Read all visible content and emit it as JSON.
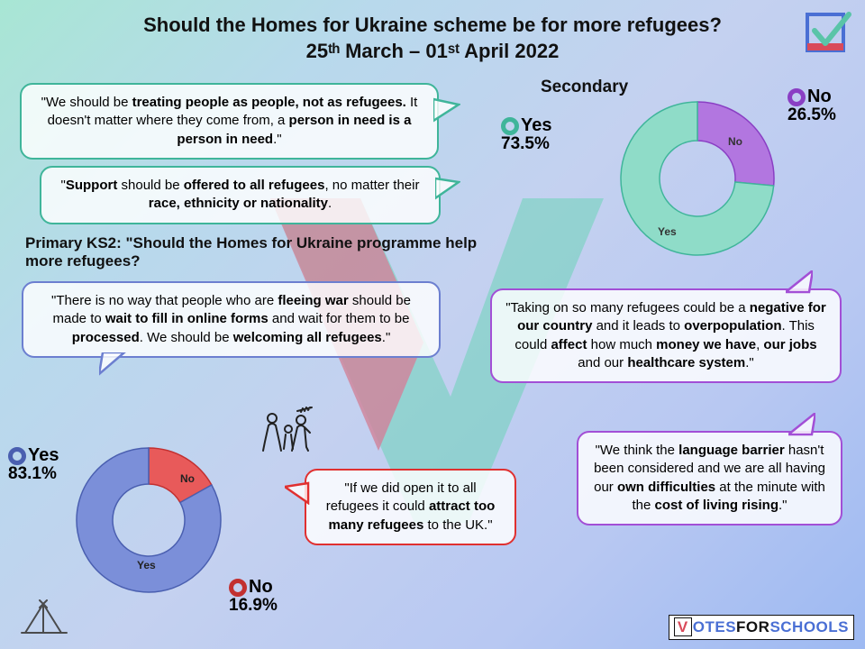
{
  "title_line1": "Should the Homes for Ukraine scheme be for more refugees?",
  "title_line2": "25ᵗʰ March – 01ˢᵗ April 2022",
  "secondary_heading": "Secondary",
  "ks2_heading": "Primary KS2: \"Should the Homes for Ukraine programme help more refugees?",
  "donut_secondary": {
    "type": "donut",
    "yes_pct": 73.5,
    "no_pct": 26.5,
    "yes_color": "#8fdcc8",
    "no_color": "#b276e0",
    "yes_border": "#3fb59a",
    "no_border": "#8a3fc4",
    "inner_radius": 42,
    "outer_radius": 85,
    "label_yes": "Yes",
    "label_no": "No",
    "legend_yes_label": "Yes",
    "legend_yes_pct": "73.5%",
    "legend_no_label": "No",
    "legend_no_pct": "26.5%"
  },
  "donut_primary": {
    "type": "donut",
    "yes_pct": 83.1,
    "no_pct": 16.9,
    "yes_color": "#7b8fd9",
    "no_color": "#e85a5a",
    "yes_border": "#4a5fb0",
    "no_border": "#c23030",
    "inner_radius": 40,
    "outer_radius": 80,
    "label_yes": "Yes",
    "label_no": "No",
    "legend_yes_label": "Yes",
    "legend_yes_pct": "83.1%",
    "legend_no_label": "No",
    "legend_no_pct": "16.9%"
  },
  "bubbles": {
    "b1": {
      "border": "#3fb59a",
      "text_pre": "\"We should be ",
      "bold1": "treating people as people, not as refugees.",
      "mid": " It doesn't matter where they come from, a ",
      "bold2": "person in need is a person in need",
      "post": ".\""
    },
    "b2": {
      "border": "#3fb59a",
      "pre": "\"",
      "bold1": "Support",
      "mid1": " should be ",
      "bold2": "offered to all refugees",
      "mid2": ", no matter their ",
      "bold3": "race, ethnicity or nationality",
      "post": "."
    },
    "b3": {
      "border": "#6c7fd0",
      "pre": "\"There is no way that people who are ",
      "bold1": "fleeing war",
      "mid1": " should be made to ",
      "bold2": "wait to fill in online forms",
      "mid2": " and wait for them to be ",
      "bold3": "processed",
      "mid3": ". We should be ",
      "bold4": "welcoming all refugees",
      "post": ".\""
    },
    "b4": {
      "border": "#a24fd6",
      "pre": "\"Taking on so many refugees could be a ",
      "bold1": "negative for our country",
      "mid1": " and it leads to ",
      "bold2": "overpopulation",
      "mid2": ". This could ",
      "bold3": "affect",
      "mid3": " how much ",
      "bold4": "money we have",
      "mid4": ", ",
      "bold5": "our jobs",
      "mid5": " and our ",
      "bold6": "healthcare system",
      "post": ".\""
    },
    "b5": {
      "border": "#e03030",
      "pre": "\"If we did open it to all refugees it could ",
      "bold1": "attract too many refugees",
      "post": " to the UK.\""
    },
    "b6": {
      "border": "#a24fd6",
      "pre": "\"We think the ",
      "bold1": "language barrier",
      "mid1": " hasn't been considered and we are all having our ",
      "bold2": "own difficulties",
      "mid2": " at the minute with the ",
      "bold3": "cost of living rising",
      "post": ".\""
    }
  },
  "footer": {
    "v": "V",
    "otes": "OTES",
    "for": "FOR",
    "schools": "SCHOOLS"
  },
  "colors": {
    "check_teal": "#6dd4b8",
    "check_red": "#d94a5a",
    "logo_teal": "#5ac4a8",
    "logo_blue": "#4a6fd4",
    "logo_red": "#d94a5a"
  }
}
